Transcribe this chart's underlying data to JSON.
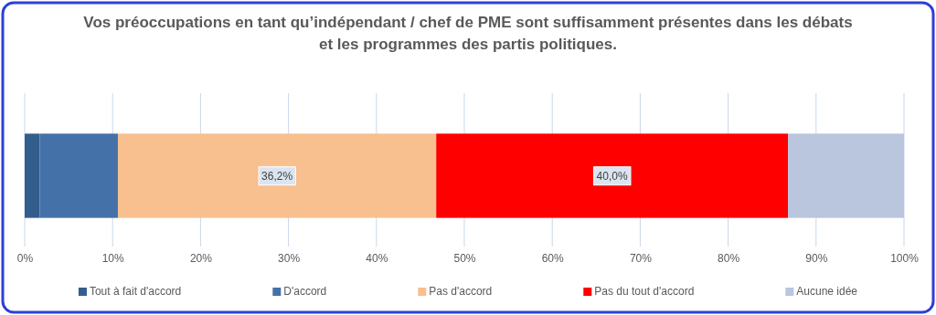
{
  "chart_data": {
    "type": "bar",
    "orientation": "horizontal",
    "stacked": true,
    "title": "Vos préoccupations en tant qu’indépendant  / chef de PME sont suffisamment présentes dans les débats et les programmes des partis politiques.",
    "categories": [
      null
    ],
    "series": [
      {
        "name": "Tout à fait d'accord",
        "color": "#335d8c",
        "values": [
          1.7
        ],
        "value_labels": [
          null
        ]
      },
      {
        "name": "D'accord",
        "color": "#4472a8",
        "values": [
          8.9
        ],
        "value_labels": [
          null
        ]
      },
      {
        "name": "Pas d'accord",
        "color": "#f8bf8f",
        "values": [
          36.2
        ],
        "value_labels": [
          "36,2%"
        ]
      },
      {
        "name": "Pas du tout d'accord",
        "color": "#ff0000",
        "values": [
          40.0
        ],
        "value_labels": [
          "40,0%"
        ]
      },
      {
        "name": "Aucune idée",
        "color": "#bac5de",
        "values": [
          13.2
        ],
        "value_labels": [
          null
        ]
      }
    ],
    "xlim": [
      0,
      100
    ],
    "xticks": [
      {
        "value": 0,
        "label": "0%"
      },
      {
        "value": 10,
        "label": "10%"
      },
      {
        "value": 20,
        "label": "20%"
      },
      {
        "value": 30,
        "label": "30%"
      },
      {
        "value": 40,
        "label": "40%"
      },
      {
        "value": 50,
        "label": "50%"
      },
      {
        "value": 60,
        "label": "60%"
      },
      {
        "value": 70,
        "label": "70%"
      },
      {
        "value": 80,
        "label": "80%"
      },
      {
        "value": 90,
        "label": "90%"
      },
      {
        "value": 100,
        "label": "100%"
      }
    ],
    "grid": "x",
    "legend": "bottom"
  }
}
